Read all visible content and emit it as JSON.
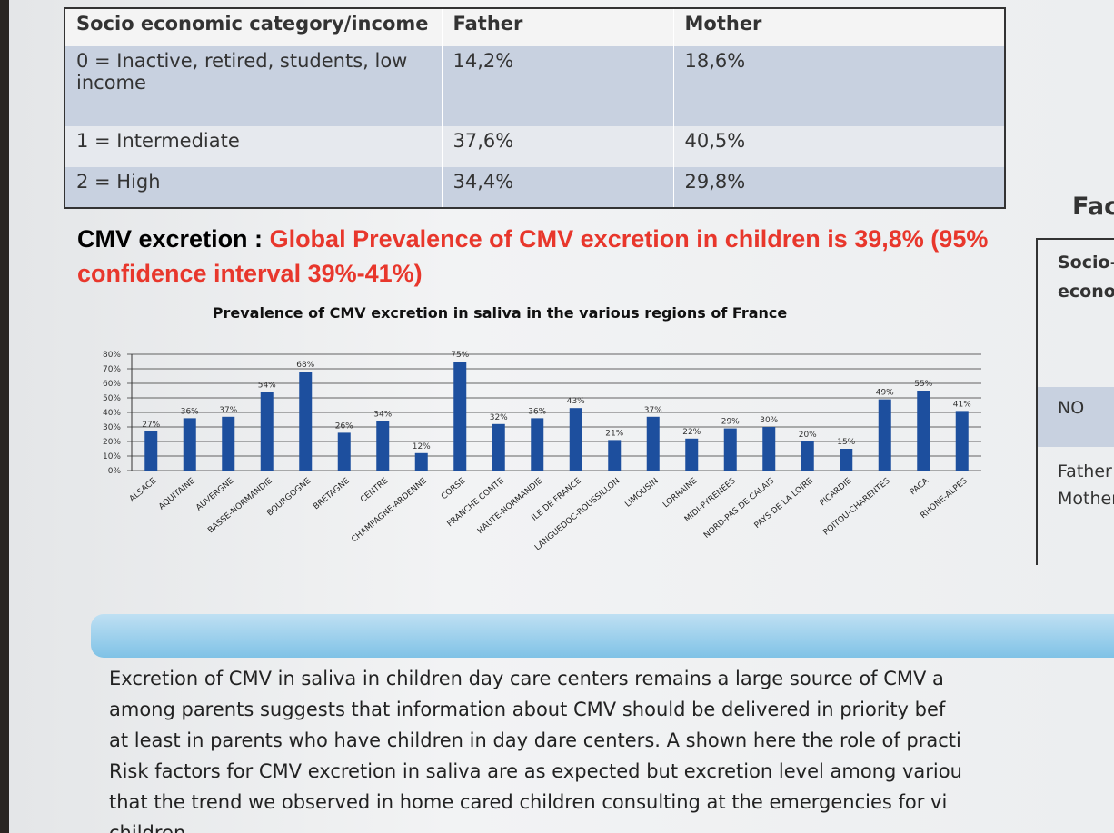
{
  "table": {
    "header": [
      "Socio economic category/income",
      "Father",
      "Mother"
    ],
    "rows": [
      [
        "0 = Inactive, retired, students, low income",
        "14,2%",
        "18,6%"
      ],
      [
        "1 = Intermediate",
        "37,6%",
        "40,5%"
      ],
      [
        "2 = High",
        "34,4%",
        "29,8%"
      ]
    ]
  },
  "heading": {
    "label": "CMV excretion :",
    "highlight": "Global Prevalence of CMV excretion in children is 39,8% (95% confidence interval 39%-41%)"
  },
  "chart_data": {
    "type": "bar",
    "title": "Prevalence of CMV excretion in saliva in the various regions of France",
    "categories": [
      "ALSACE",
      "AQUITAINE",
      "AUVERGNE",
      "BASSE-NORMANDIE",
      "BOURGOGNE",
      "BRETAGNE",
      "CENTRE",
      "CHAMPAGNE-ARDENNE",
      "CORSE",
      "FRANCHE COMTE",
      "HAUTE-NORMANDIE",
      "ILE DE FRANCE",
      "LANGUEDOC-ROUSSILLON",
      "LIMOUSIN",
      "LORRAINE",
      "MIDI-PYRENEES",
      "NORD-PAS DE CALAIS",
      "PAYS DE LA LOIRE",
      "PICARDIE",
      "POITOU-CHARENTES",
      "PACA",
      "RHONE-ALPES"
    ],
    "values": [
      27,
      36,
      37,
      54,
      68,
      26,
      34,
      12,
      75,
      32,
      36,
      43,
      21,
      37,
      22,
      29,
      30,
      20,
      15,
      49,
      55,
      41
    ],
    "value_labels": [
      "27%",
      "36%",
      "37%",
      "54%",
      "68%",
      "26%",
      "34%",
      "12%",
      "75%",
      "32%",
      "36%",
      "43%",
      "21%",
      "37%",
      "22%",
      "29%",
      "30%",
      "20%",
      "15%",
      "49%",
      "55%",
      "41%"
    ],
    "color": "#1d4f9e",
    "ylim": [
      0,
      80
    ],
    "yticks": [
      {
        "value": 0,
        "label": "0%"
      },
      {
        "value": 10,
        "label": "10%"
      },
      {
        "value": 20,
        "label": "20%"
      },
      {
        "value": 30,
        "label": "30%"
      },
      {
        "value": 40,
        "label": "40%"
      },
      {
        "value": 50,
        "label": "50%"
      },
      {
        "value": 60,
        "label": "60%"
      },
      {
        "value": 70,
        "label": "70%"
      },
      {
        "value": 80,
        "label": "80%"
      }
    ],
    "grid": true
  },
  "paragraph": [
    "Excretion of CMV in saliva in children day care centers remains a large source of CMV a",
    "among parents suggests that information about CMV should be delivered in priority bef",
    "at least in parents who have children in day dare centers. A shown here the role of practi",
    "Risk factors for CMV excretion in saliva are as expected but excretion level among variou",
    "that the trend we observed in home cared children consulting at the emergencies for vi",
    "children"
  ],
  "side_panel": {
    "title": "Fac",
    "header": [
      "Socio-",
      "econo"
    ],
    "row": "NO",
    "lines": [
      "Father",
      "Mother"
    ]
  }
}
